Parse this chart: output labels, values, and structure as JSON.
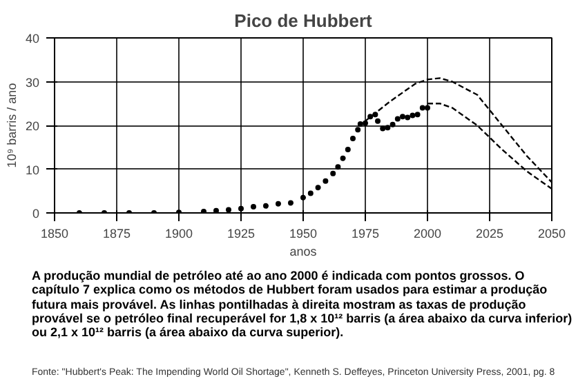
{
  "chart_data": {
    "type": "scatter",
    "title": "Pico de Hubbert",
    "xlabel": "anos",
    "ylabel": "10⁹ barris / ano",
    "xlim": [
      1850,
      2050
    ],
    "ylim": [
      0,
      40
    ],
    "xticks": [
      1850,
      1875,
      1900,
      1925,
      1950,
      1975,
      2000,
      2025,
      2050
    ],
    "yticks": [
      0,
      10,
      20,
      30,
      40
    ],
    "grid": true,
    "series": [
      {
        "marker": "circle",
        "color": "#000000",
        "x": [
          1860,
          1870,
          1880,
          1890,
          1900,
          1910,
          1915,
          1920,
          1925,
          1930,
          1935,
          1940,
          1945,
          1950,
          1953,
          1956,
          1959,
          1962,
          1964,
          1966,
          1968,
          1970,
          1972,
          1973,
          1975,
          1977,
          1979,
          1980,
          1982,
          1984,
          1986,
          1988,
          1990,
          1992,
          1994,
          1996,
          1998,
          2000
        ],
        "values": [
          0,
          0,
          0,
          0,
          0.1,
          0.3,
          0.5,
          0.7,
          1.0,
          1.4,
          1.6,
          2.1,
          2.3,
          3.5,
          4.5,
          5.8,
          7.3,
          9.0,
          10.5,
          12.5,
          14.5,
          17.0,
          19.0,
          20.3,
          20.5,
          22.0,
          22.5,
          21.0,
          19.3,
          19.5,
          20.2,
          21.5,
          22.0,
          21.8,
          22.3,
          22.5,
          24.0,
          24.0
        ]
      },
      {
        "type": "line",
        "line_style": "dashed",
        "color": "#000000",
        "x": [
          1975,
          1985,
          1995,
          2000,
          2005,
          2010,
          2020,
          2030,
          2040,
          2050
        ],
        "values": [
          21.0,
          25.5,
          29.5,
          30.5,
          30.8,
          30.0,
          27.0,
          20.0,
          13.0,
          7.0
        ]
      },
      {
        "type": "line",
        "line_style": "dashed",
        "color": "#000000",
        "x": [
          2000,
          2005,
          2010,
          2020,
          2030,
          2040,
          2050
        ],
        "values": [
          25.0,
          25.0,
          24.0,
          20.0,
          14.5,
          9.5,
          5.5
        ]
      }
    ],
    "annotations": [
      "A produção mundial de petróleo até ao ano 2000 é indicada com pontos grossos. O capítulo 7 explica como os métodos de Hubbert foram usados para estimar a produção futura mais provável.  As linhas pontilhadas à direita mostram as taxas de produção provável se o petróleo final recuperável for 1,8 x 10¹² barris (a área abaixo da curva inferior) ou 2,1 x 10¹² barris (a área abaixo da curva superior).",
      "Fonte:  \"Hubbert's Peak: The Impending World Oil Shortage\", Kenneth S. Deffeyes, Princeton University Press, 2001, pg. 8"
    ]
  }
}
